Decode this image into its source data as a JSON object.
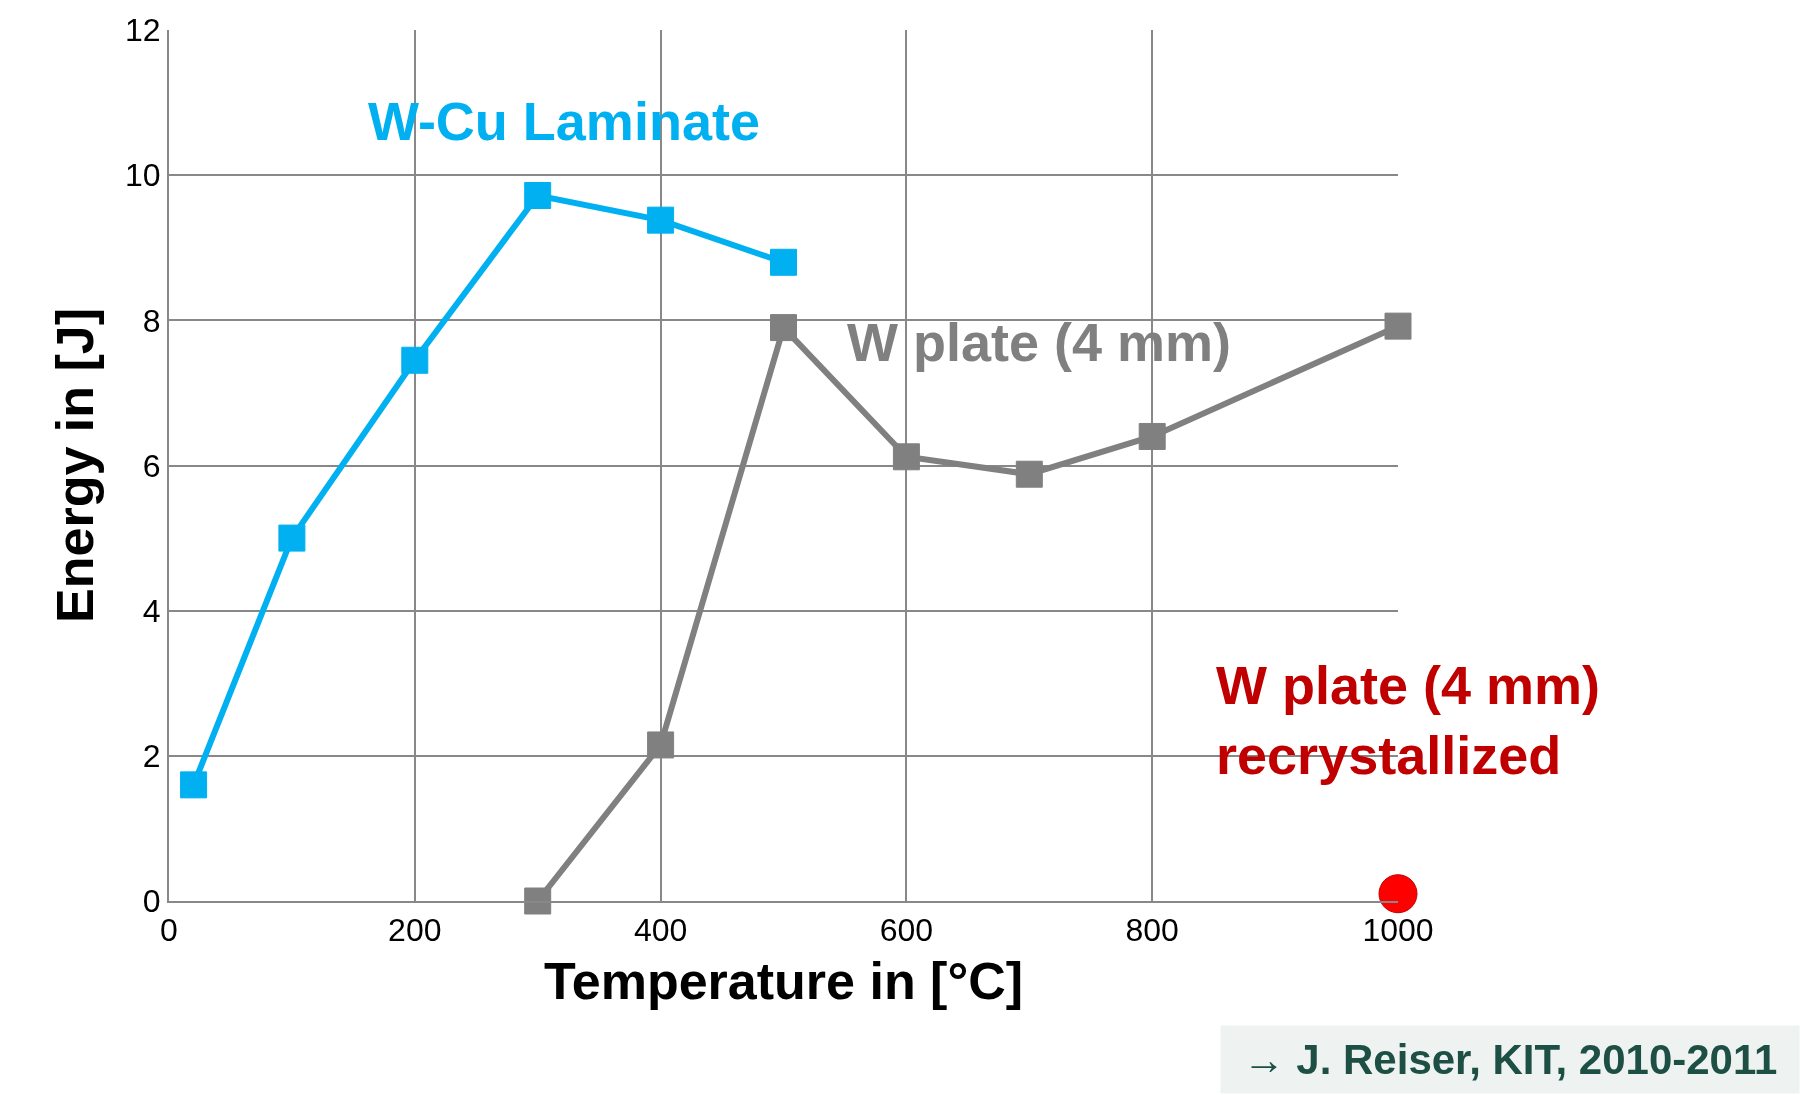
{
  "chart_data": {
    "type": "line",
    "xlabel": "Temperature in [°C]",
    "ylabel": "Energy in [J]",
    "xlim": [
      0,
      1000
    ],
    "xticks": [
      0,
      200,
      400,
      600,
      800,
      1000
    ],
    "ylim": [
      0,
      12
    ],
    "yticks": [
      0,
      2,
      4,
      6,
      8,
      10,
      12
    ],
    "grid": true,
    "legend": false,
    "series": [
      {
        "name": "W-Cu Laminate",
        "color": "#00b0f0",
        "marker": "square",
        "x": [
          20,
          100,
          200,
          300,
          400,
          500
        ],
        "values": [
          1.6,
          5.0,
          7.45,
          9.72,
          9.38,
          8.8
        ]
      },
      {
        "name": "W plate (4 mm)",
        "color": "#808080",
        "marker": "square",
        "x": [
          300,
          400,
          500,
          600,
          700,
          800,
          1000
        ],
        "values": [
          0,
          2.15,
          7.9,
          6.12,
          5.88,
          6.4,
          7.92
        ]
      },
      {
        "name": "W plate (4 mm)\nrecrystallized",
        "color": "#ff0000",
        "type": "scatter",
        "marker": "circle",
        "x": [
          1000
        ],
        "values": [
          0.1
        ]
      }
    ],
    "annotations": [
      "→ J. Reiser, KIT, 2010-2011"
    ]
  }
}
